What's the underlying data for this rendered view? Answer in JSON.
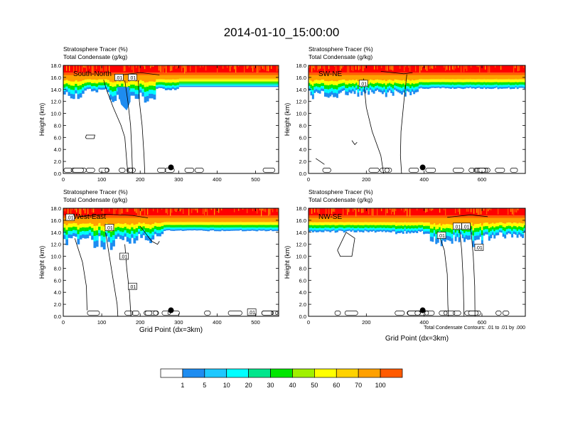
{
  "title": "2014-01-10_15:00:00",
  "colors": {
    "scale": [
      "#ffffff",
      "#1e8cf0",
      "#1ec8ff",
      "#00ffff",
      "#00e68c",
      "#00e600",
      "#a0f000",
      "#ffff00",
      "#ffd200",
      "#ffa000",
      "#ff5a00",
      "#ff0000"
    ],
    "contour": "#000000"
  },
  "colorbar": {
    "labels": [
      "1",
      "5",
      "10",
      "20",
      "30",
      "40",
      "50",
      "60",
      "70",
      "100"
    ]
  },
  "contour_note": "Total Condensate Contours: .01 to .01 by .000",
  "chart_data": [
    {
      "type": "heatmap",
      "name": "South-North",
      "title_lines": [
        "Stratosphere Tracer   (%)",
        "Total Condensate   (g/kg)"
      ],
      "ylabel": "Height (km)",
      "xlabel": "",
      "xlim": [
        0,
        560
      ],
      "ylim": [
        0,
        18
      ],
      "xticks": [
        0,
        100,
        200,
        300,
        400,
        500
      ],
      "yticks": [
        "0.0",
        "2.0",
        "4.0",
        "6.0",
        "8.0",
        "10.0",
        "12.0",
        "14.0",
        "16.0",
        "18.0"
      ],
      "marker": {
        "x": 280,
        "y": 1.0
      },
      "contour_labels": [
        {
          "text": ".01",
          "x": 145,
          "y": 16.0
        },
        {
          "text": ".01",
          "x": 180,
          "y": 16.0
        }
      ]
    },
    {
      "type": "heatmap",
      "name": "SW-NE",
      "title_lines": [
        "Stratosphere Tracer   (%)",
        "Total Condensate   (g/kg)"
      ],
      "ylabel": "Height (km)",
      "xlabel": "",
      "xlim": [
        0,
        750
      ],
      "ylim": [
        0,
        18
      ],
      "xticks": [
        0,
        200,
        400,
        600
      ],
      "yticks": [
        "0.0",
        "2.0",
        "4.0",
        "6.0",
        "8.0",
        "10.0",
        "12.0",
        "14.0",
        "16.0",
        "18.0"
      ],
      "marker": {
        "x": 395,
        "y": 1.0
      },
      "contour_labels": [
        {
          "text": ".01",
          "x": 190,
          "y": 15.0
        }
      ]
    },
    {
      "type": "heatmap",
      "name": "West-East",
      "title_lines": [
        "Stratosphere Tracer   (%)",
        "Total Condensate   (g/kg)"
      ],
      "ylabel": "Height (km)",
      "xlabel": "Grid Point (dx=3km)",
      "xlim": [
        0,
        560
      ],
      "ylim": [
        0,
        18
      ],
      "xticks": [
        0,
        100,
        200,
        300,
        400,
        500
      ],
      "yticks": [
        "0.0",
        "2.0",
        "4.0",
        "6.0",
        "8.0",
        "10.0",
        "12.0",
        "14.0",
        "16.0",
        "18.0"
      ],
      "marker": {
        "x": 280,
        "y": 1.0
      },
      "contour_labels": [
        {
          "text": ".01",
          "x": 18,
          "y": 16.5
        },
        {
          "text": ".01",
          "x": 120,
          "y": 14.8
        },
        {
          "text": ".01",
          "x": 158,
          "y": 10.0
        },
        {
          "text": ".01",
          "x": 180,
          "y": 5.0
        },
        {
          "text": ".01",
          "x": 490,
          "y": 0.7
        }
      ]
    },
    {
      "type": "heatmap",
      "name": "NW-SE",
      "title_lines": [
        "Stratosphere Tracer   (%)",
        "Total Condensate   (g/kg)"
      ],
      "ylabel": "Height (km)",
      "xlabel": "Grid Point (dx=3km)",
      "xlim": [
        0,
        750
      ],
      "ylim": [
        0,
        18
      ],
      "xticks": [
        0,
        200,
        400,
        600
      ],
      "yticks": [
        "0.0",
        "2.0",
        "4.0",
        "6.0",
        "8.0",
        "10.0",
        "12.0",
        "14.0",
        "16.0",
        "18.0"
      ],
      "marker": {
        "x": 395,
        "y": 1.0
      },
      "contour_labels": [
        {
          "text": ".01",
          "x": 460,
          "y": 13.5
        },
        {
          "text": ".01",
          "x": 515,
          "y": 15.0
        },
        {
          "text": ".01",
          "x": 545,
          "y": 15.0
        },
        {
          "text": ".01",
          "x": 590,
          "y": 11.5
        }
      ]
    }
  ]
}
